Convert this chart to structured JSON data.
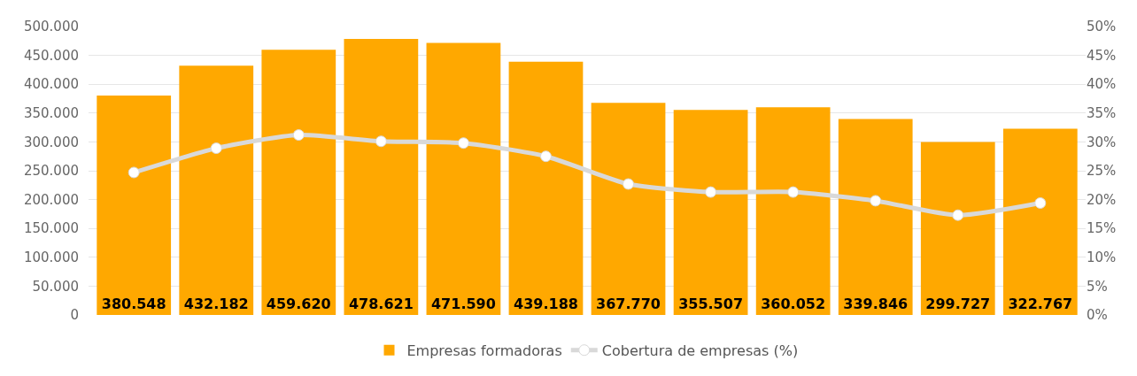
{
  "chart_data": {
    "type": "bar",
    "categories": [
      null,
      null,
      null,
      null,
      null,
      null,
      null,
      null,
      null,
      null,
      null,
      null
    ],
    "series": [
      {
        "name": "Empresas formadoras",
        "color": "#ffa800",
        "values": [
          380548,
          432182,
          459620,
          478621,
          471590,
          439188,
          367770,
          355507,
          360052,
          339846,
          299727,
          322767
        ],
        "value_labels": [
          "380.548",
          "432.182",
          "459.620",
          "478.621",
          "471.590",
          "439.188",
          "367.770",
          "355.507",
          "360.052",
          "339.846",
          "299.727",
          "322.767"
        ]
      },
      {
        "name": "Cobertura de empresas (%)",
        "type": "line",
        "axis": "y2",
        "color": "#d9d9d9",
        "values": [
          24.7,
          28.9,
          31.2,
          30.1,
          29.8,
          27.5,
          22.7,
          21.3,
          21.3,
          19.8,
          17.3,
          19.4
        ]
      }
    ],
    "ylim": [
      0,
      500000
    ],
    "yticks": [
      {
        "value": 0,
        "label": "0"
      },
      {
        "value": 50000,
        "label": "50.000"
      },
      {
        "value": 100000,
        "label": "100.000"
      },
      {
        "value": 150000,
        "label": "150.000"
      },
      {
        "value": 200000,
        "label": "200.000"
      },
      {
        "value": 250000,
        "label": "250.000"
      },
      {
        "value": 300000,
        "label": "300.000"
      },
      {
        "value": 350000,
        "label": "350.000"
      },
      {
        "value": 400000,
        "label": "400.000"
      },
      {
        "value": 450000,
        "label": "450.000"
      },
      {
        "value": 500000,
        "label": "500.000"
      }
    ],
    "y2lim": [
      0,
      50
    ],
    "y2ticks": [
      {
        "value": 0,
        "label": "0%"
      },
      {
        "value": 5,
        "label": "5%"
      },
      {
        "value": 10,
        "label": "10%"
      },
      {
        "value": 15,
        "label": "15%"
      },
      {
        "value": 20,
        "label": "20%"
      },
      {
        "value": 25,
        "label": "25%"
      },
      {
        "value": 30,
        "label": "30%"
      },
      {
        "value": 35,
        "label": "35%"
      },
      {
        "value": 40,
        "label": "40%"
      },
      {
        "value": 45,
        "label": "45%"
      },
      {
        "value": 50,
        "label": "50%"
      }
    ],
    "grid": "y",
    "legend": "bottom",
    "marker": "circle",
    "line_style": "solid",
    "tick_labels": "y"
  }
}
